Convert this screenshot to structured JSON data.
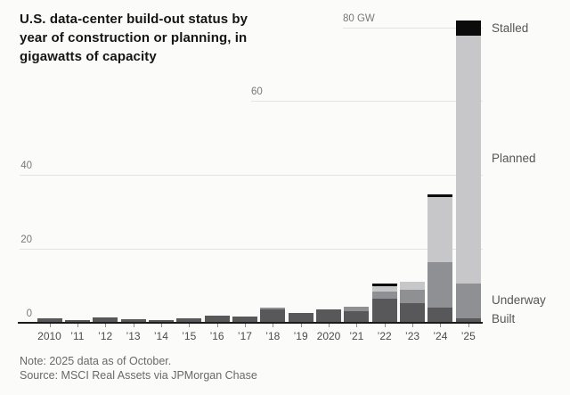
{
  "title_lines": [
    "U.S. data-center build-out status by",
    "year of construction or planning, in",
    "gigawatts of capacity"
  ],
  "note": "Note: 2025 data as of October.",
  "source": "Source: MSCI Real Assets via JPMorgan Chase",
  "colors": {
    "built": "#58585a",
    "underway": "#8f9093",
    "planned": "#c7c7c9",
    "stalled": "#0b0b0b",
    "grid": "#e3e3e0",
    "baseline": "#1c1a19"
  },
  "chart_data": {
    "type": "bar",
    "stacked": true,
    "unit": "GW",
    "title": "U.S. data-center build-out status by year of construction or planning, in gigawatts of capacity",
    "categories": [
      "2010",
      "’11",
      "’12",
      "’13",
      "’14",
      "’15",
      "’16",
      "’17",
      "’18",
      "’19",
      "2020",
      "’21",
      "’22",
      "’23",
      "’24",
      "’25"
    ],
    "series": [
      {
        "name": "Built",
        "key": "built",
        "values": [
          1.2,
          0.6,
          1.4,
          0.8,
          0.6,
          1.1,
          1.8,
          1.5,
          3.6,
          2.6,
          3.4,
          3.1,
          6.4,
          5.3,
          3.9,
          1.1
        ]
      },
      {
        "name": "Underway",
        "key": "underway",
        "values": [
          0,
          0,
          0,
          0,
          0,
          0,
          0,
          0,
          0.4,
          0,
          0,
          1.2,
          1.9,
          3.5,
          12.5,
          9.3
        ]
      },
      {
        "name": "Planned",
        "key": "planned",
        "values": [
          0,
          0,
          0,
          0,
          0,
          0,
          0,
          0,
          0,
          0,
          0,
          0,
          1.5,
          2.2,
          17.6,
          67.4
        ]
      },
      {
        "name": "Stalled",
        "key": "stalled",
        "values": [
          0,
          0,
          0,
          0,
          0,
          0,
          0,
          0,
          0,
          0,
          0,
          0,
          0.7,
          0,
          0.7,
          4.0
        ]
      }
    ],
    "y_axis": {
      "ticks": [
        {
          "value": 0,
          "label": "0"
        },
        {
          "value": 20,
          "label": "20"
        },
        {
          "value": 40,
          "label": "40"
        },
        {
          "value": 60,
          "label": "60"
        },
        {
          "value": 80,
          "label": "80 GW"
        }
      ],
      "max": 82
    },
    "legend": [
      {
        "label": "Stalled",
        "key": "stalled"
      },
      {
        "label": "Planned",
        "key": "planned"
      },
      {
        "label": "Underway",
        "key": "underway"
      },
      {
        "label": "Built",
        "key": "built"
      }
    ],
    "legend_position": "right",
    "grid": true
  }
}
